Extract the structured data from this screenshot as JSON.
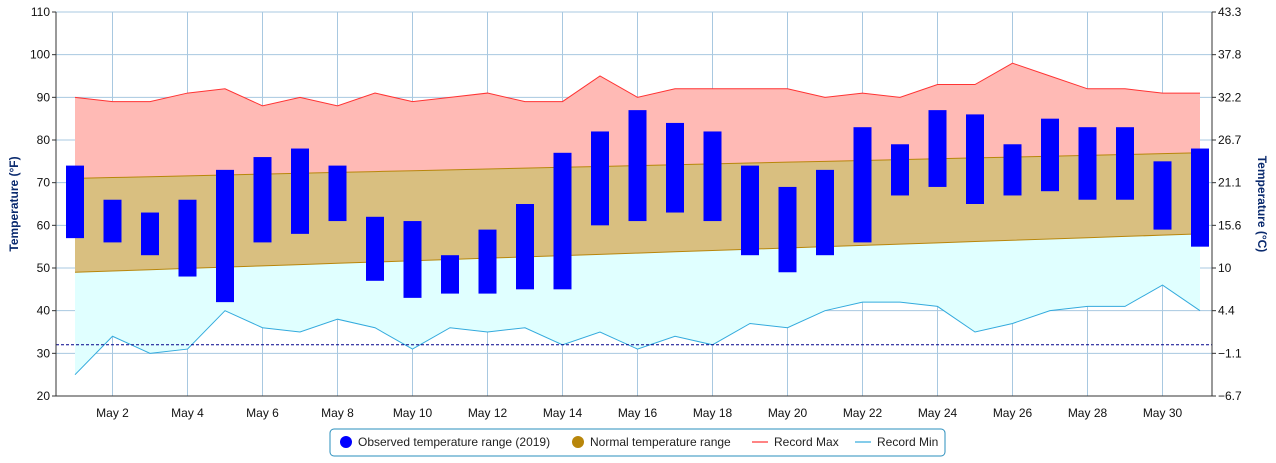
{
  "chart_data": {
    "type": "bar",
    "y_left_label": "Temperature (°F)",
    "y_right_label": "Temperature (°C)",
    "ylim": [
      20,
      110
    ],
    "y_left_ticks": [
      "20",
      "30",
      "40",
      "50",
      "60",
      "70",
      "80",
      "90",
      "100",
      "110"
    ],
    "y_right_ticks": [
      "−6.7",
      "−1.1",
      "4.4",
      "10",
      "15.6",
      "21.1",
      "26.7",
      "32.2",
      "37.8",
      "43.3"
    ],
    "days": [
      1,
      2,
      3,
      4,
      5,
      6,
      7,
      8,
      9,
      10,
      11,
      12,
      13,
      14,
      15,
      16,
      17,
      18,
      19,
      20,
      21,
      22,
      23,
      24,
      25,
      26,
      27,
      28,
      29,
      30,
      31
    ],
    "x_tick_labels": [
      "May 2",
      "May 4",
      "May 6",
      "May 8",
      "May 10",
      "May 12",
      "May 14",
      "May 16",
      "May 18",
      "May 20",
      "May 22",
      "May 24",
      "May 26",
      "May 28",
      "May 30"
    ],
    "x_tick_days": [
      2,
      4,
      6,
      8,
      10,
      12,
      14,
      16,
      18,
      20,
      22,
      24,
      26,
      28,
      30
    ],
    "freezing_line": 32,
    "observed_high": [
      74,
      66,
      63,
      66,
      73,
      76,
      78,
      74,
      62,
      61,
      53,
      59,
      65,
      77,
      82,
      87,
      84,
      82,
      74,
      69,
      73,
      83,
      79,
      87,
      86,
      79,
      85,
      83,
      83,
      75,
      78
    ],
    "observed_low": [
      57,
      56,
      53,
      48,
      42,
      56,
      58,
      61,
      47,
      43,
      44,
      44,
      45,
      45,
      60,
      61,
      63,
      61,
      53,
      49,
      53,
      56,
      67,
      69,
      65,
      67,
      68,
      66,
      66,
      59,
      55
    ],
    "normal_high": [
      71,
      71.2,
      71.4,
      71.6,
      71.8,
      72,
      72.2,
      72.4,
      72.6,
      72.8,
      73,
      73.2,
      73.4,
      73.6,
      73.8,
      74,
      74.2,
      74.4,
      74.6,
      74.8,
      75,
      75.2,
      75.4,
      75.6,
      75.8,
      76,
      76.2,
      76.4,
      76.6,
      76.8,
      77
    ],
    "normal_low": [
      49,
      49.3,
      49.6,
      49.9,
      50.2,
      50.5,
      50.8,
      51.1,
      51.4,
      51.7,
      52,
      52.3,
      52.6,
      52.9,
      53.2,
      53.5,
      53.8,
      54.1,
      54.4,
      54.7,
      55,
      55.3,
      55.6,
      55.9,
      56.2,
      56.5,
      56.8,
      57.1,
      57.4,
      57.7,
      58
    ],
    "record_max": [
      90,
      89,
      89,
      91,
      92,
      88,
      90,
      88,
      91,
      89,
      90,
      91,
      89,
      89,
      95,
      90,
      92,
      92,
      92,
      92,
      90,
      91,
      90,
      93,
      93,
      98,
      95,
      92,
      92,
      91,
      91
    ],
    "record_min": [
      25,
      34,
      30,
      31,
      40,
      36,
      35,
      38,
      36,
      31,
      36,
      35,
      36,
      32,
      35,
      31,
      34,
      32,
      37,
      36,
      40,
      42,
      42,
      41,
      35,
      37,
      40,
      41,
      41,
      46,
      40
    ],
    "legend": [
      {
        "label": "Observed temperature range (2019)",
        "color": "#0000ff",
        "kind": "dot"
      },
      {
        "label": "Normal temperature range",
        "color": "#b8860b",
        "kind": "dot"
      },
      {
        "label": "Record Max",
        "color": "#ff3333",
        "kind": "line"
      },
      {
        "label": "Record Min",
        "color": "#33aadd",
        "kind": "line"
      }
    ],
    "colors": {
      "observed": "#0000ff",
      "normal_fill": "#d9bf80",
      "normal_edge": "#b8860b",
      "max_fill": "#ffbab5",
      "max_line": "#ff3333",
      "min_fill": "#e0ffff",
      "min_line": "#33aadd",
      "grid": "#a8c8e0",
      "freezing": "#00008b"
    }
  }
}
